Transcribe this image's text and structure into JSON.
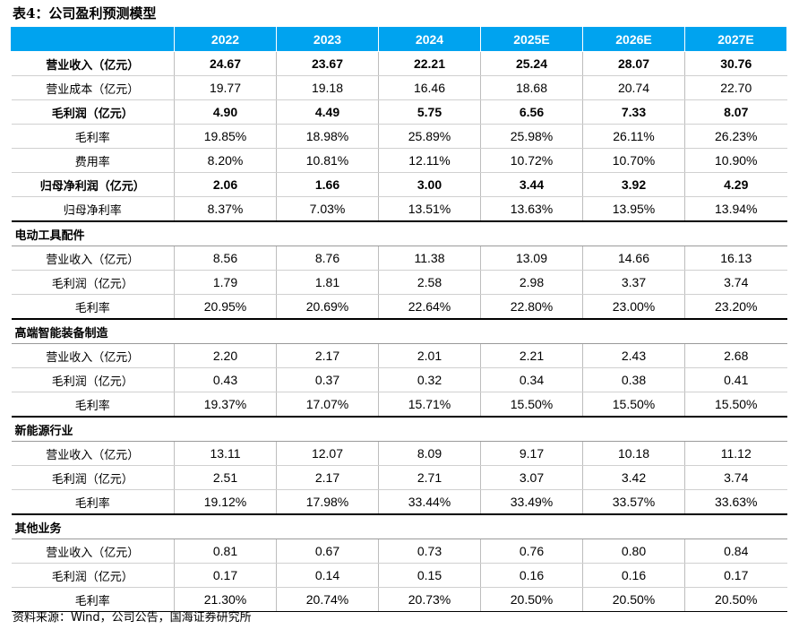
{
  "title": "表4：公司盈利预测模型",
  "years": [
    "2022",
    "2023",
    "2024",
    "2025E",
    "2026E",
    "2027E"
  ],
  "summary_rows": [
    {
      "label": "营业收入（亿元）",
      "values": [
        "24.67",
        "23.67",
        "22.21",
        "25.24",
        "28.07",
        "30.76"
      ],
      "bold": true
    },
    {
      "label": "营业成本（亿元）",
      "values": [
        "19.77",
        "19.18",
        "16.46",
        "18.68",
        "20.74",
        "22.70"
      ],
      "bold": false
    },
    {
      "label": "毛利润（亿元）",
      "values": [
        "4.90",
        "4.49",
        "5.75",
        "6.56",
        "7.33",
        "8.07"
      ],
      "bold": true
    },
    {
      "label": "毛利率",
      "values": [
        "19.85%",
        "18.98%",
        "25.89%",
        "25.98%",
        "26.11%",
        "26.23%"
      ],
      "bold": false
    },
    {
      "label": "费用率",
      "values": [
        "8.20%",
        "10.81%",
        "12.11%",
        "10.72%",
        "10.70%",
        "10.90%"
      ],
      "bold": false
    },
    {
      "label": "归母净利润（亿元）",
      "values": [
        "2.06",
        "1.66",
        "3.00",
        "3.44",
        "3.92",
        "4.29"
      ],
      "bold": true
    },
    {
      "label": "归母净利率",
      "values": [
        "8.37%",
        "7.03%",
        "13.51%",
        "13.63%",
        "13.95%",
        "13.94%"
      ],
      "bold": false
    }
  ],
  "segments": [
    {
      "name": "电动工具配件",
      "rows": [
        {
          "label": "营业收入（亿元）",
          "values": [
            "8.56",
            "8.76",
            "11.38",
            "13.09",
            "14.66",
            "16.13"
          ]
        },
        {
          "label": "毛利润（亿元）",
          "values": [
            "1.79",
            "1.81",
            "2.58",
            "2.98",
            "3.37",
            "3.74"
          ]
        },
        {
          "label": "毛利率",
          "values": [
            "20.95%",
            "20.69%",
            "22.64%",
            "22.80%",
            "23.00%",
            "23.20%"
          ]
        }
      ]
    },
    {
      "name": "高端智能装备制造",
      "rows": [
        {
          "label": "营业收入（亿元）",
          "values": [
            "2.20",
            "2.17",
            "2.01",
            "2.21",
            "2.43",
            "2.68"
          ]
        },
        {
          "label": "毛利润（亿元）",
          "values": [
            "0.43",
            "0.37",
            "0.32",
            "0.34",
            "0.38",
            "0.41"
          ]
        },
        {
          "label": "毛利率",
          "values": [
            "19.37%",
            "17.07%",
            "15.71%",
            "15.50%",
            "15.50%",
            "15.50%"
          ]
        }
      ]
    },
    {
      "name": "新能源行业",
      "rows": [
        {
          "label": "营业收入（亿元）",
          "values": [
            "13.11",
            "12.07",
            "8.09",
            "9.17",
            "10.18",
            "11.12"
          ]
        },
        {
          "label": "毛利润（亿元）",
          "values": [
            "2.51",
            "2.17",
            "2.71",
            "3.07",
            "3.42",
            "3.74"
          ]
        },
        {
          "label": "毛利率",
          "values": [
            "19.12%",
            "17.98%",
            "33.44%",
            "33.49%",
            "33.57%",
            "33.63%"
          ]
        }
      ]
    },
    {
      "name": "其他业务",
      "rows": [
        {
          "label": "营业收入（亿元）",
          "values": [
            "0.81",
            "0.67",
            "0.73",
            "0.76",
            "0.80",
            "0.84"
          ]
        },
        {
          "label": "毛利润（亿元）",
          "values": [
            "0.17",
            "0.14",
            "0.15",
            "0.16",
            "0.16",
            "0.17"
          ]
        },
        {
          "label": "毛利率",
          "values": [
            "21.30%",
            "20.74%",
            "20.73%",
            "20.50%",
            "20.50%",
            "20.50%"
          ]
        }
      ]
    }
  ],
  "source": "资料来源：Wind，公司公告，国海证券研究所",
  "colors": {
    "header_bg": "#00a3ef",
    "header_text": "#ffffff"
  }
}
